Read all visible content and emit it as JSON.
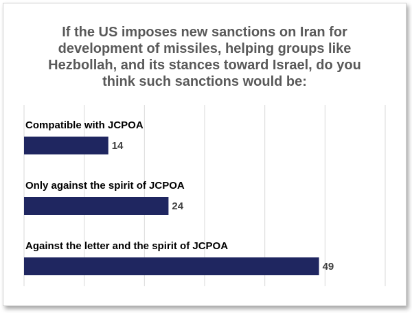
{
  "chart_data": {
    "type": "bar",
    "orientation": "horizontal",
    "title": "If the US imposes new sanctions on Iran for development of missiles, helping groups like Hezbollah, and its stances toward Israel, do you think such sanctions would be:",
    "categories": [
      "Compatible with JCPOA",
      "Only against the spirit of JCPOA",
      "Against the letter and the spirit of JCPOA"
    ],
    "values": [
      14,
      24,
      49
    ],
    "xlim": [
      0,
      60
    ],
    "grid": true,
    "legend": "none",
    "bar_color": "#1f2660",
    "grid_color": "#d9d9d9"
  }
}
